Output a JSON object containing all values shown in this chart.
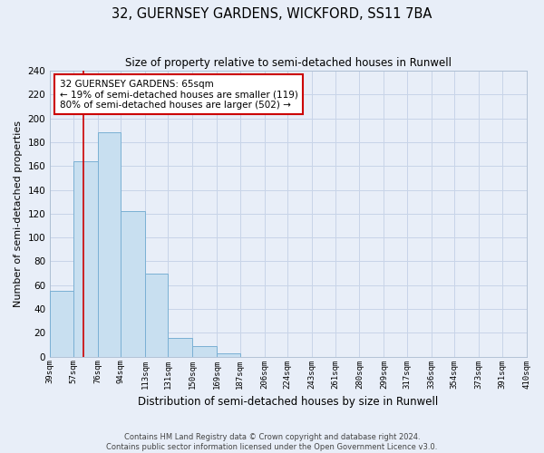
{
  "title": "32, GUERNSEY GARDENS, WICKFORD, SS11 7BA",
  "subtitle": "Size of property relative to semi-detached houses in Runwell",
  "xlabel": "Distribution of semi-detached houses by size in Runwell",
  "ylabel": "Number of semi-detached properties",
  "footer_line1": "Contains HM Land Registry data © Crown copyright and database right 2024.",
  "footer_line2": "Contains public sector information licensed under the Open Government Licence v3.0.",
  "bin_edges": [
    39,
    57,
    76,
    94,
    113,
    131,
    150,
    169,
    187,
    206,
    224,
    243,
    261,
    280,
    299,
    317,
    336,
    354,
    373,
    391,
    410
  ],
  "bin_labels": [
    "39sqm",
    "57sqm",
    "76sqm",
    "94sqm",
    "113sqm",
    "131sqm",
    "150sqm",
    "169sqm",
    "187sqm",
    "206sqm",
    "224sqm",
    "243sqm",
    "261sqm",
    "280sqm",
    "299sqm",
    "317sqm",
    "336sqm",
    "354sqm",
    "373sqm",
    "391sqm",
    "410sqm"
  ],
  "counts": [
    55,
    164,
    188,
    122,
    70,
    16,
    9,
    3,
    0,
    0,
    0,
    0,
    0,
    0,
    0,
    0,
    0,
    0,
    0,
    0
  ],
  "bar_color": "#c8dff0",
  "bar_edge_color": "#7ab0d4",
  "property_line_x": 65,
  "property_line_color": "#cc0000",
  "annotation_title": "32 GUERNSEY GARDENS: 65sqm",
  "annotation_line1": "← 19% of semi-detached houses are smaller (119)",
  "annotation_line2": "80% of semi-detached houses are larger (502) →",
  "annotation_box_facecolor": "#ffffff",
  "annotation_box_edgecolor": "#cc0000",
  "ylim": [
    0,
    240
  ],
  "yticks": [
    0,
    20,
    40,
    60,
    80,
    100,
    120,
    140,
    160,
    180,
    200,
    220,
    240
  ],
  "grid_color": "#c8d4e8",
  "background_color": "#e8eef8",
  "spine_color": "#aabbd0"
}
